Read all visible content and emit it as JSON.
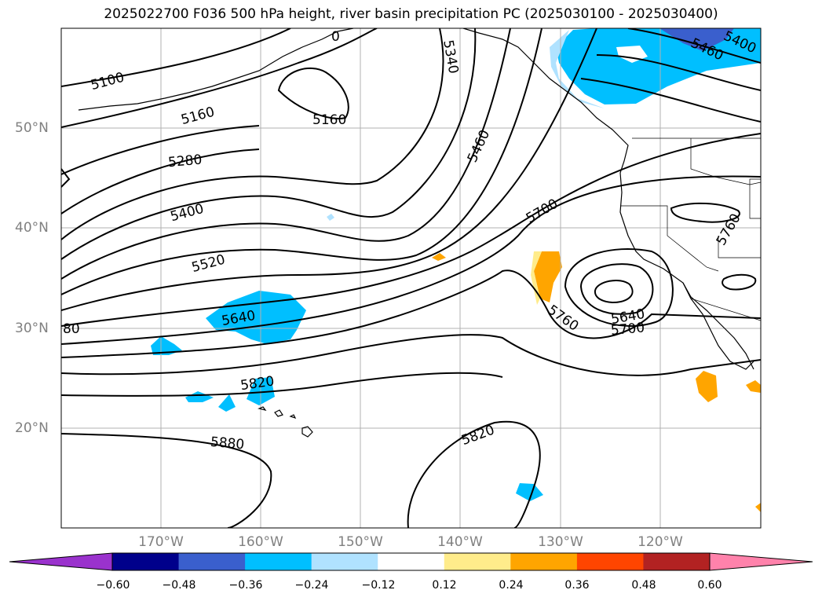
{
  "title": "2025022700 F036 500 hPa height, river basin precipitation PC (2025030100 - 2025030400)",
  "lat_labels": [
    "50°N",
    "40°N",
    "30°N",
    "20°N"
  ],
  "lon_labels": [
    "170°W",
    "160°W",
    "150°W",
    "140°W",
    "130°W",
    "120°W"
  ],
  "contour_labels": [
    "5100",
    "5160",
    "5160",
    "5280",
    "5400",
    "5520",
    "5640",
    "5820",
    "5880",
    "5340",
    "5460",
    "5700",
    "5760",
    "5640",
    "5700",
    "5820",
    "5460",
    "5400",
    "5760",
    "80",
    "0"
  ],
  "colorbar": {
    "ticks": [
      "−0.60",
      "−0.48",
      "−0.36",
      "−0.24",
      "−0.12",
      "0.12",
      "0.24",
      "0.36",
      "0.48",
      "0.60"
    ],
    "colors": [
      "#9a32cd",
      "#00008b",
      "#3a5fcd",
      "#00bfff",
      "#b0e2ff",
      "#ffffff",
      "#ffec8b",
      "#ffa500",
      "#ff4500",
      "#b22222",
      "#ff82ab"
    ]
  },
  "colors": {
    "negative_fill": "#00bfff",
    "light_negative_fill": "#b0e2ff",
    "positive_fill": "#ffa500",
    "light_positive_fill": "#ffec8b",
    "contour": "#000000",
    "grid": "#b0b0b0",
    "axis_label": "#808080"
  }
}
